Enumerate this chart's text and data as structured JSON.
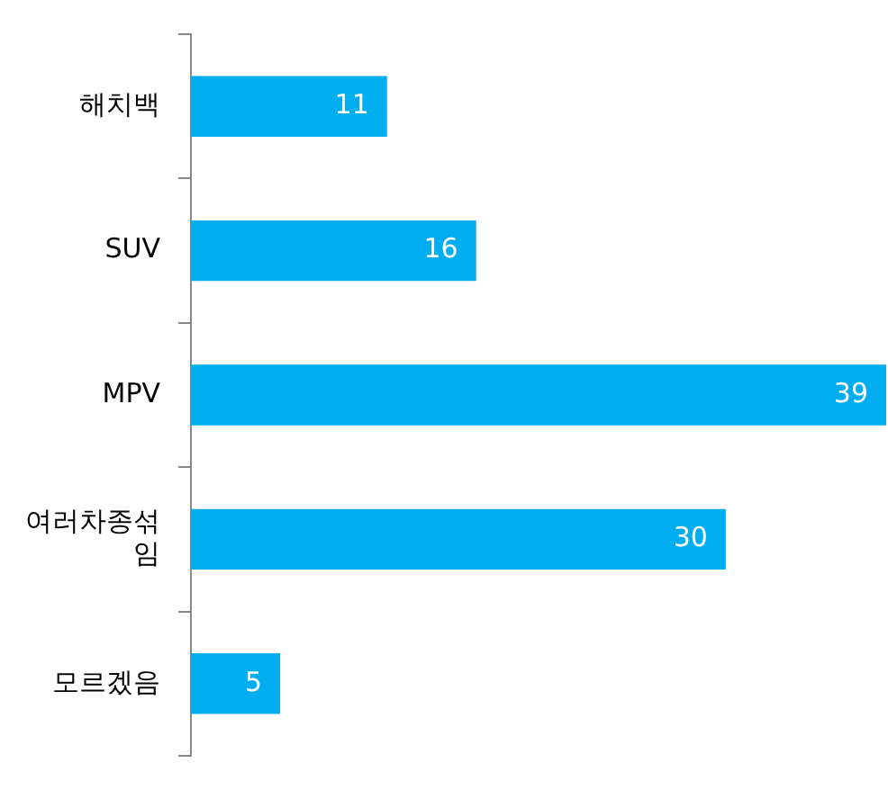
{
  "chart_data": {
    "type": "bar",
    "orientation": "horizontal",
    "categories": [
      "해치백",
      "SUV",
      "MPV",
      "여러차종섞임",
      "모르겠음"
    ],
    "values": [
      11,
      16,
      39,
      30,
      5
    ],
    "color": "#00aeef",
    "xlim": [
      0,
      39
    ],
    "tick_labels": "y",
    "data_labels": true
  }
}
